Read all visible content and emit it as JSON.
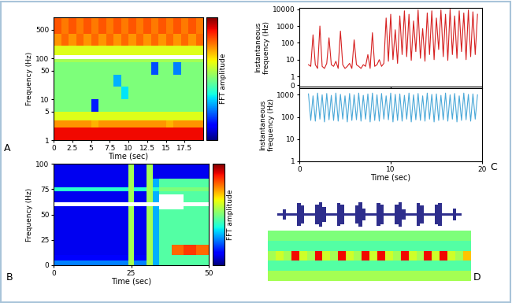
{
  "chart_data": [
    {
      "type": "heatmap",
      "panel_label": "A",
      "log": "y",
      "x_label": "Time (sec)",
      "y_label": "Frequency (Hz)",
      "xlim": [
        0,
        20
      ],
      "xticks": [
        0,
        2.5,
        5,
        7.5,
        10,
        12.5,
        15,
        17.5
      ],
      "ylim": [
        1,
        1000
      ],
      "yticks": [
        1,
        5,
        10,
        50,
        100,
        500
      ],
      "x_edges": [
        0,
        1,
        2,
        3,
        4,
        5,
        6,
        7,
        8,
        9,
        10,
        11,
        12,
        13,
        14,
        15,
        16,
        17,
        18,
        19,
        20
      ],
      "y_edges": [
        1,
        2,
        3,
        5,
        10,
        20,
        40,
        80,
        95,
        120,
        200,
        400,
        1000
      ],
      "cells": [
        [
          0.9,
          0.9,
          0.9,
          0.9,
          0.9,
          0.9,
          0.9,
          0.9,
          0.9,
          0.9,
          0.9,
          0.9,
          0.9,
          0.9,
          0.9,
          0.9,
          0.9,
          0.9,
          0.9,
          0.9
        ],
        [
          0.75,
          0.75,
          0.75,
          0.75,
          0.75,
          0.72,
          0.75,
          0.75,
          0.75,
          0.75,
          0.75,
          0.75,
          0.75,
          0.75,
          0.75,
          0.72,
          0.75,
          0.75,
          0.75,
          0.75
        ],
        [
          0.62,
          0.62,
          0.62,
          0.62,
          0.62,
          0.62,
          0.62,
          0.62,
          0.62,
          0.62,
          0.62,
          0.62,
          0.62,
          0.62,
          0.62,
          0.62,
          0.62,
          0.62,
          0.62,
          0.62
        ],
        [
          0.5,
          0.5,
          0.5,
          0.5,
          0.5,
          0.15,
          0.5,
          0.5,
          0.5,
          0.5,
          0.5,
          0.5,
          0.5,
          0.5,
          0.5,
          0.5,
          0.5,
          0.5,
          0.5,
          0.5
        ],
        [
          0.5,
          0.5,
          0.5,
          0.5,
          0.5,
          0.5,
          0.5,
          0.5,
          0.5,
          0.35,
          0.5,
          0.5,
          0.5,
          0.5,
          0.5,
          0.5,
          0.5,
          0.5,
          0.5,
          0.5
        ],
        [
          0.5,
          0.5,
          0.5,
          0.5,
          0.5,
          0.5,
          0.5,
          0.5,
          0.3,
          0.5,
          0.5,
          0.5,
          0.5,
          0.5,
          0.5,
          0.5,
          0.5,
          0.5,
          0.5,
          0.5
        ],
        [
          0.5,
          0.5,
          0.5,
          0.5,
          0.5,
          0.5,
          0.5,
          0.5,
          0.5,
          0.5,
          0.5,
          0.5,
          0.5,
          0.2,
          0.5,
          0.5,
          0.25,
          0.5,
          0.5,
          0.5
        ],
        [
          0.55,
          0.55,
          0.55,
          0.55,
          0.55,
          0.55,
          0.55,
          0.55,
          0.55,
          0.55,
          0.55,
          0.55,
          0.55,
          0.55,
          0.55,
          0.55,
          0.55,
          0.55,
          0.55,
          0.55
        ],
        [
          1.2,
          1.2,
          1.2,
          1.2,
          1.2,
          1.2,
          1.2,
          1.2,
          1.2,
          1.2,
          1.2,
          1.2,
          1.2,
          1.2,
          1.2,
          1.2,
          1.2,
          1.2,
          1.2,
          1.2
        ],
        [
          0.62,
          0.62,
          0.62,
          0.62,
          0.62,
          0.62,
          0.62,
          0.62,
          0.62,
          0.62,
          0.62,
          0.62,
          0.62,
          0.62,
          0.62,
          0.62,
          0.62,
          0.62,
          0.62,
          0.62
        ],
        [
          0.75,
          0.8,
          0.75,
          0.8,
          0.75,
          0.8,
          0.75,
          0.8,
          0.75,
          0.8,
          0.75,
          0.8,
          0.75,
          0.8,
          0.75,
          0.8,
          0.75,
          0.8,
          0.75,
          0.8
        ],
        [
          0.82,
          0.78,
          0.82,
          0.78,
          0.82,
          0.78,
          0.82,
          0.78,
          0.82,
          0.78,
          0.82,
          0.78,
          0.82,
          0.78,
          0.82,
          0.78,
          0.82,
          0.78,
          0.82,
          0.78
        ]
      ],
      "colorbar_label": "FFT amplitude",
      "colorbar_range": [
        0,
        1
      ],
      "colorbar_ticks": []
    },
    {
      "type": "heatmap",
      "panel_label": "B",
      "x_label": "Time (sec)",
      "y_label": "Frequency (Hz)",
      "xlim": [
        0,
        50
      ],
      "xticks": [
        0,
        25,
        50
      ],
      "ylim": [
        0,
        100
      ],
      "yticks": [
        0,
        25,
        50,
        75,
        100
      ],
      "x_edges": [
        0,
        5,
        10,
        15,
        20,
        24,
        26,
        30,
        32,
        34,
        38,
        42,
        46,
        50
      ],
      "y_edges": [
        0,
        5,
        10,
        20,
        30,
        45,
        55,
        58,
        62,
        70,
        73,
        77,
        85,
        100
      ],
      "cells": [
        [
          0.25,
          0.25,
          0.25,
          0.25,
          0.25,
          0.55,
          0.25,
          0.55,
          0.3,
          0.45,
          0.45,
          0.45,
          0.45
        ],
        [
          0.12,
          0.12,
          0.12,
          0.12,
          0.12,
          0.55,
          0.12,
          0.55,
          0.3,
          0.45,
          0.45,
          0.45,
          0.45
        ],
        [
          0.1,
          0.1,
          0.1,
          0.1,
          0.1,
          0.55,
          0.1,
          0.55,
          0.3,
          0.45,
          0.8,
          0.85,
          0.8
        ],
        [
          0.1,
          0.1,
          0.1,
          0.1,
          0.1,
          0.55,
          0.1,
          0.55,
          0.3,
          0.45,
          0.45,
          0.45,
          0.45
        ],
        [
          0.1,
          0.1,
          0.1,
          0.1,
          0.1,
          0.55,
          0.1,
          0.55,
          0.3,
          0.45,
          0.45,
          0.45,
          0.45
        ],
        [
          0.1,
          0.1,
          0.1,
          0.1,
          0.1,
          0.55,
          0.1,
          0.55,
          0.3,
          0.45,
          0.45,
          0.45,
          0.45
        ],
        [
          0.1,
          0.1,
          0.1,
          0.1,
          0.1,
          0.55,
          0.1,
          0.55,
          0.3,
          1.2,
          1.2,
          0.45,
          0.45
        ],
        [
          1.2,
          1.2,
          1.2,
          1.2,
          1.2,
          1.2,
          1.2,
          1.2,
          1.2,
          1.2,
          1.2,
          1.2,
          1.2
        ],
        [
          0.1,
          0.1,
          0.1,
          0.1,
          0.1,
          0.55,
          0.1,
          0.55,
          0.3,
          1.2,
          1.2,
          0.45,
          0.45
        ],
        [
          0.1,
          0.1,
          0.1,
          0.1,
          0.1,
          0.55,
          0.1,
          0.55,
          0.3,
          0.45,
          0.45,
          0.45,
          0.45
        ],
        [
          0.4,
          0.4,
          0.4,
          0.4,
          0.4,
          0.55,
          0.4,
          0.55,
          0.4,
          0.5,
          0.5,
          0.5,
          0.5
        ],
        [
          0.1,
          0.1,
          0.1,
          0.1,
          0.1,
          0.55,
          0.1,
          0.55,
          0.3,
          0.45,
          0.45,
          0.45,
          0.45
        ],
        [
          0.1,
          0.1,
          0.1,
          0.1,
          0.1,
          0.55,
          0.1,
          0.55,
          0.1,
          0.1,
          0.1,
          0.1,
          0.1
        ]
      ],
      "colorbar_label": "FFT amplitude",
      "colorbar_range": [
        0,
        1
      ],
      "colorbar_ticks": []
    },
    {
      "type": "line",
      "log": "y",
      "tick_labels": "y",
      "color": "#d62020",
      "y_label": "Instantaneous\nfrequency (Hz)",
      "xlim": [
        0,
        20
      ],
      "xticks": [
        0,
        10,
        20
      ],
      "ylim": [
        0.25,
        12000
      ],
      "yticks": [
        {
          "value": 0.3,
          "label": "0"
        },
        1,
        10,
        100,
        1000,
        10000
      ],
      "x": [
        1,
        1.25,
        1.5,
        1.75,
        2,
        2.25,
        2.5,
        2.75,
        3,
        3.25,
        3.5,
        3.75,
        4,
        4.25,
        4.5,
        4.75,
        5,
        5.25,
        5.5,
        5.75,
        6,
        6.25,
        6.5,
        6.75,
        7,
        7.25,
        7.5,
        7.75,
        8,
        8.25,
        8.5,
        8.75,
        9,
        9.25,
        9.5,
        9.75,
        10,
        10.25,
        10.5,
        10.75,
        11,
        11.25,
        11.5,
        11.75,
        12,
        12.25,
        12.5,
        12.75,
        13,
        13.25,
        13.5,
        13.75,
        14,
        14.25,
        14.5,
        14.75,
        15,
        15.25,
        15.5,
        15.75,
        16,
        16.25,
        16.5,
        16.75,
        17,
        17.25,
        17.5,
        17.75,
        18,
        18.25,
        18.5,
        18.75,
        19,
        19.25,
        19.5
      ],
      "values": [
        5,
        4,
        300,
        5,
        3,
        1000,
        4,
        3,
        6,
        200,
        5,
        4,
        8,
        3,
        500,
        5,
        3,
        4,
        6,
        3,
        150,
        5,
        4,
        3,
        5,
        4,
        20,
        3,
        400,
        4,
        5,
        10,
        4,
        6,
        3000,
        8,
        5000,
        10,
        600,
        6,
        4000,
        20,
        8000,
        15,
        5000,
        9,
        2000,
        30,
        9000,
        12,
        700,
        8,
        6000,
        20,
        8000,
        10,
        3000,
        40,
        9000,
        15,
        5000,
        9,
        10000,
        20,
        4000,
        12,
        8000,
        30,
        6000,
        10,
        9000,
        15,
        7000,
        20,
        5000
      ]
    },
    {
      "type": "line",
      "panel_label": "C",
      "log": "y",
      "color": "#4aa8d8",
      "x_label": "Time (sec)",
      "y_label": "Instantaneous\nfrequency (Hz)",
      "xlim": [
        0,
        20
      ],
      "xticks": [
        0,
        10,
        20
      ],
      "ylim": [
        1,
        2000
      ],
      "yticks": [
        1,
        10,
        100,
        1000
      ],
      "x": [
        1,
        1.25,
        1.5,
        1.75,
        2,
        2.25,
        2.5,
        2.75,
        3,
        3.25,
        3.5,
        3.75,
        4,
        4.25,
        4.5,
        4.75,
        5,
        5.25,
        5.5,
        5.75,
        6,
        6.25,
        6.5,
        6.75,
        7,
        7.25,
        7.5,
        7.75,
        8,
        8.25,
        8.5,
        8.75,
        9,
        9.25,
        9.5,
        9.75,
        10,
        10.25,
        10.5,
        10.75,
        11,
        11.25,
        11.5,
        11.75,
        12,
        12.25,
        12.5,
        12.75,
        13,
        13.25,
        13.5,
        13.75,
        14,
        14.25,
        14.5,
        14.75,
        15,
        15.25,
        15.5,
        15.75,
        16,
        16.25,
        16.5,
        16.75,
        17,
        17.25,
        17.5,
        17.75,
        18,
        18.25,
        18.5,
        18.75,
        19,
        19.25,
        19.5
      ],
      "values": [
        1100,
        70,
        900,
        65,
        1200,
        80,
        1000,
        60,
        1150,
        75,
        950,
        70,
        1200,
        65,
        1050,
        80,
        900,
        60,
        1150,
        70,
        1000,
        75,
        1200,
        65,
        950,
        80,
        1100,
        60,
        1200,
        70,
        1000,
        65,
        1150,
        80,
        900,
        75,
        1200,
        60,
        1050,
        70,
        1100,
        65,
        950,
        80,
        1200,
        60,
        1000,
        75,
        1150,
        70,
        900,
        65,
        1200,
        80,
        1050,
        60,
        1100,
        70,
        950,
        75,
        1200,
        65,
        1000,
        80,
        1150,
        60,
        900,
        70,
        1200,
        75,
        1050,
        65,
        1100,
        80,
        1000
      ]
    },
    {
      "type": "area",
      "tick_labels": false,
      "color": "#2e2e8c",
      "values": [
        0.1,
        0.1,
        0.4,
        0.1,
        0.1,
        0.1,
        0.9,
        0.7,
        0.1,
        0.1,
        0.1,
        0.8,
        1.0,
        0.6,
        0.1,
        0.1,
        0.1,
        0.9,
        0.8,
        0.1,
        0.1,
        0.1,
        0.7,
        1.0,
        0.5,
        0.1,
        0.1,
        0.1,
        0.9,
        0.8,
        0.1,
        0.1,
        0.1,
        0.8,
        1.0,
        0.4,
        0.1,
        0.1,
        0.1,
        0.9,
        0.7,
        0.1,
        0.1,
        0.1,
        0.8,
        0.9,
        0.1,
        0.1,
        0.1,
        0.5,
        0.1,
        0.1
      ]
    },
    {
      "type": "heatmap",
      "panel_label": "D",
      "tick_labels": false,
      "value_range": [
        0,
        1
      ],
      "cells": [
        [
          0.5,
          0.5,
          0.5,
          0.5,
          0.5,
          0.5,
          0.5,
          0.5,
          0.5,
          0.5,
          0.5,
          0.5,
          0.5,
          0.5,
          0.5,
          0.5,
          0.5,
          0.5,
          0.5,
          0.5,
          0.5,
          0.5,
          0.5,
          0.5,
          0.5,
          0.5
        ],
        [
          0.45,
          0.45,
          0.45,
          0.45,
          0.45,
          0.45,
          0.45,
          0.45,
          0.45,
          0.45,
          0.45,
          0.45,
          0.45,
          0.45,
          0.45,
          0.45,
          0.45,
          0.45,
          0.45,
          0.45,
          0.45,
          0.45,
          0.45,
          0.45,
          0.45,
          0.45
        ],
        [
          0.55,
          0.6,
          0.55,
          0.9,
          0.6,
          0.55,
          0.9,
          0.6,
          0.55,
          0.9,
          0.6,
          0.55,
          0.9,
          0.6,
          0.9,
          0.6,
          0.55,
          0.9,
          0.6,
          0.55,
          0.9,
          0.6,
          0.9,
          0.6,
          0.55,
          0.7
        ],
        [
          0.45,
          0.45,
          0.45,
          0.45,
          0.45,
          0.45,
          0.45,
          0.45,
          0.45,
          0.45,
          0.45,
          0.45,
          0.45,
          0.45,
          0.45,
          0.45,
          0.45,
          0.45,
          0.45,
          0.45,
          0.45,
          0.45,
          0.45,
          0.45,
          0.45,
          0.45
        ],
        [
          0.55,
          0.55,
          0.55,
          0.55,
          0.55,
          0.55,
          0.55,
          0.55,
          0.55,
          0.55,
          0.55,
          0.55,
          0.55,
          0.55,
          0.55,
          0.55,
          0.55,
          0.55,
          0.55,
          0.55,
          0.55,
          0.55,
          0.55,
          0.55,
          0.55,
          0.55
        ]
      ]
    }
  ]
}
